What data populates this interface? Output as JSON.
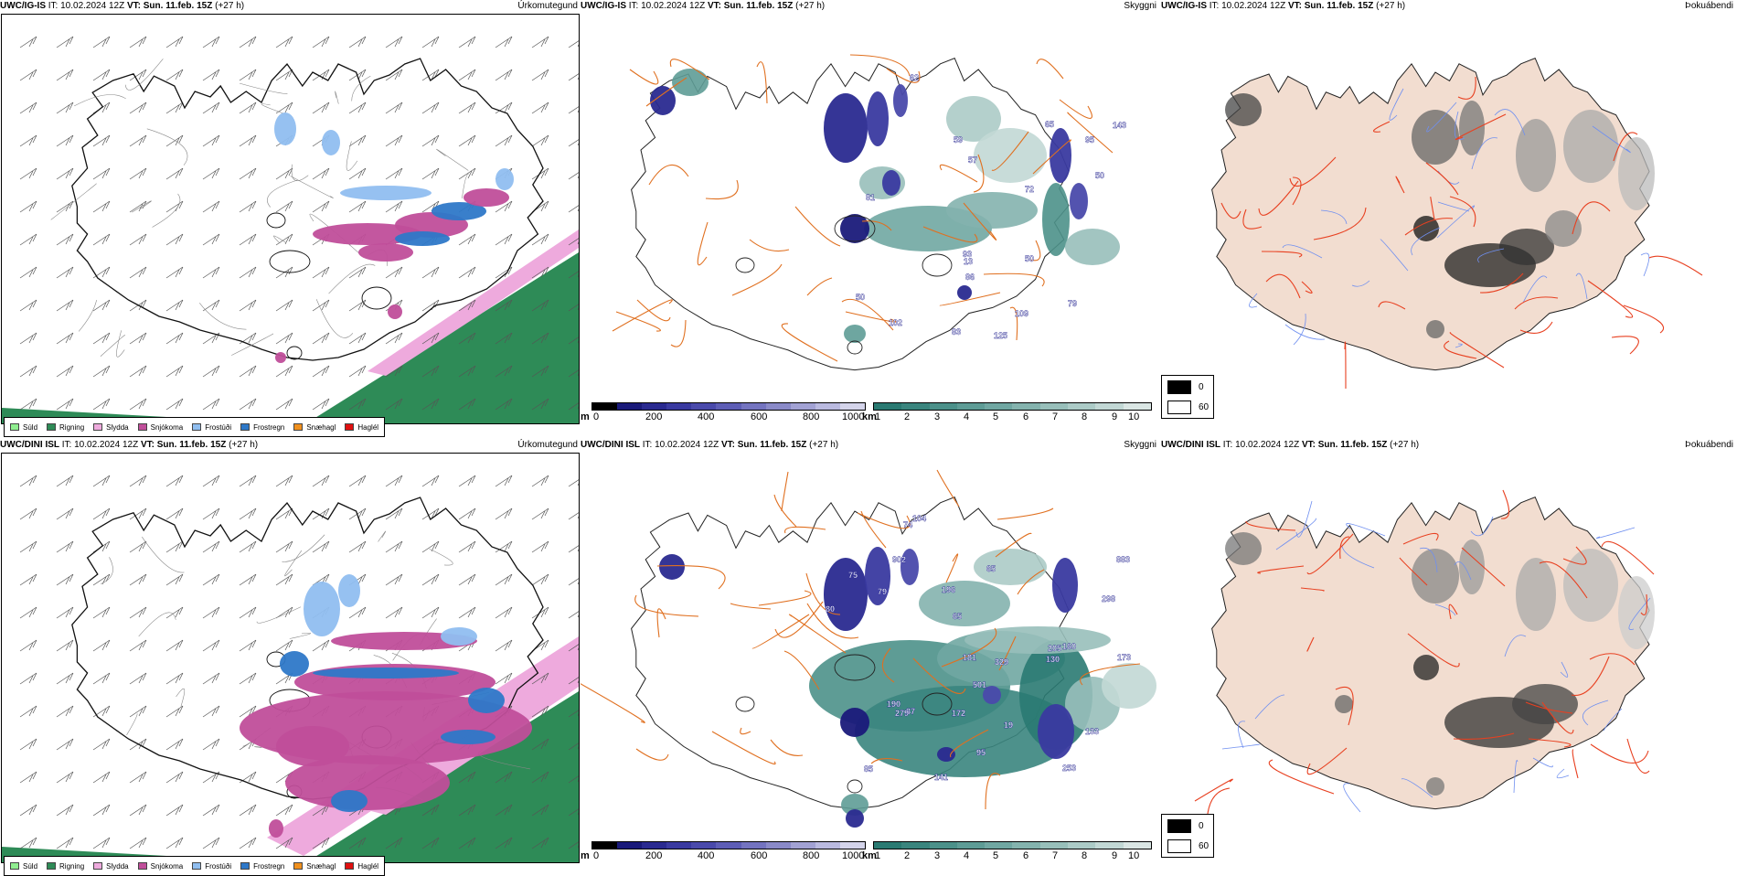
{
  "rows": [
    {
      "model": "UWC/IG-IS",
      "it_label": "IT:",
      "it_value": "10.02.2024 12Z",
      "vt_label": "VT:",
      "vt_value": "Sun. 11.feb. 15Z",
      "lead": "(+27 h)",
      "precip_title": "Úrkomutegund",
      "vis_title": "Skyggni",
      "fog_title": "Þokuábendi",
      "cloud_labels": [
        "81",
        "62",
        "57",
        "65",
        "86",
        "143",
        "59",
        "95",
        "83",
        "125",
        "79",
        "102",
        "93",
        "109",
        "72",
        "13",
        "50",
        "50",
        "50"
      ]
    },
    {
      "model": "UWC/DINI ISL",
      "it_label": "IT:",
      "it_value": "10.02.2024 12Z",
      "vt_label": "VT:",
      "vt_value": "Sun. 11.feb. 15Z",
      "lead": "(+27 h)",
      "precip_title": "Úrkomutegund",
      "vis_title": "Skyggni",
      "fog_title": "Þokuábendi",
      "cloud_labels": [
        "79",
        "75",
        "65",
        "74",
        "87",
        "65",
        "80",
        "329",
        "133",
        "130",
        "104",
        "205",
        "253",
        "160",
        "501",
        "95",
        "196",
        "181",
        "190",
        "172",
        "173",
        "279",
        "902",
        "141",
        "298",
        "85",
        "883",
        "19"
      ]
    }
  ],
  "precip_legend": [
    {
      "label": "Súld",
      "color": "#90ee90"
    },
    {
      "label": "Rigning",
      "color": "#2e8b57"
    },
    {
      "label": "Slydda",
      "color": "#eeaadd"
    },
    {
      "label": "Snjókoma",
      "color": "#c04e9a"
    },
    {
      "label": "Frostúði",
      "color": "#90bef0"
    },
    {
      "label": "Frostregn",
      "color": "#2e78c8"
    },
    {
      "label": "Snæhagl",
      "color": "#f0901e"
    },
    {
      "label": "Haglél",
      "color": "#e01010"
    }
  ],
  "ceiling_bar": {
    "unit": "m",
    "ticks": [
      "0",
      "200",
      "400",
      "600",
      "800",
      "1000"
    ],
    "colors": [
      "#000000",
      "#1a1a7a",
      "#2a2a90",
      "#3a3aa0",
      "#4a4aab",
      "#5e5eb6",
      "#7474c0",
      "#8a8ac8",
      "#a2a2d4",
      "#babae0",
      "#d4d4ea"
    ]
  },
  "visibility_bar": {
    "unit": "km",
    "ticks": [
      "1",
      "2",
      "3",
      "4",
      "5",
      "6",
      "7",
      "8",
      "9",
      "10"
    ],
    "colors": [
      "#2a7a72",
      "#3a857e",
      "#4c918a",
      "#5e9c96",
      "#70a7a2",
      "#84b3ae",
      "#98bfba",
      "#accbc7",
      "#c2d8d5",
      "#dae6e4"
    ]
  },
  "fog_scale": {
    "values": [
      "0",
      "60"
    ],
    "colors": [
      "#000000",
      "#ffffff"
    ]
  },
  "colors": {
    "land_fog": "#f2ddd0",
    "roads": "#e07020",
    "roads_fog": "#e84020",
    "rivers": "#6f8ff0",
    "coast": "#222222",
    "cloud_label": "#1c1c8c"
  }
}
